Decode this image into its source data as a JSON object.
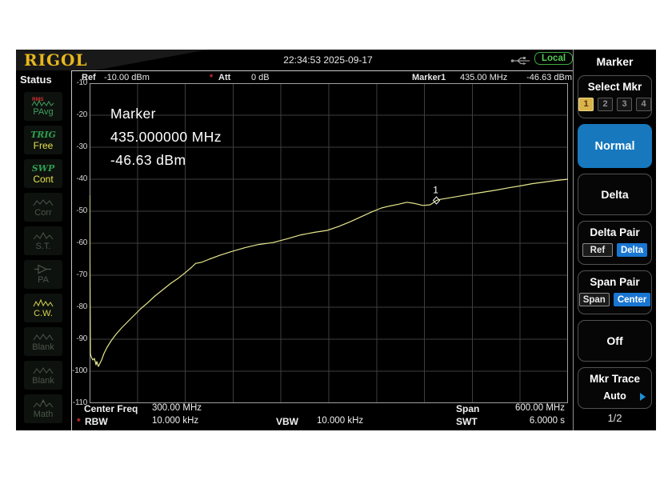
{
  "header": {
    "logo": "RIGOL",
    "timestamp": "22:34:53 2025-09-17",
    "usb_icon": "usb-icon",
    "local_badge": "Local"
  },
  "status_panel": {
    "title": "Status",
    "items": [
      {
        "top": "RMS",
        "label": "PAvg",
        "icon": "rms-wave-icon",
        "state": "green"
      },
      {
        "top": "TRIG",
        "label": "Free",
        "state": "active"
      },
      {
        "top": "SWP",
        "label": "Cont",
        "state": "active"
      },
      {
        "label": "Corr",
        "icon": "wave-icon",
        "state": "dim"
      },
      {
        "label": "S.T.",
        "icon": "wave-icon",
        "state": "dim"
      },
      {
        "label": "PA",
        "icon": "amplifier-icon",
        "state": "dim"
      },
      {
        "label": "C.W.",
        "icon": "wave-icon",
        "state": "yellow"
      },
      {
        "label": "Blank",
        "icon": "wave-icon",
        "state": "dim"
      },
      {
        "label": "Blank",
        "icon": "wave-icon",
        "state": "dim"
      },
      {
        "label": "Math",
        "icon": "math-wave-icon",
        "state": "dim"
      }
    ]
  },
  "display": {
    "ref_label": "Ref",
    "ref_value": "-10.00 dBm",
    "att_star": "*",
    "att_label": "Att",
    "att_value": "0 dB",
    "marker_readout_label": "Marker1",
    "marker_readout_freq": "435.00 MHz",
    "marker_readout_ampl": "-46.63 dBm",
    "overlay": {
      "title": "Marker",
      "freq": "435.000000 MHz",
      "ampl": "-46.63 dBm"
    },
    "footer": {
      "center_label": "Center Freq",
      "center_value": "300.00 MHz",
      "span_label": "Span",
      "span_value": "600.00 MHz",
      "rbw_star": "*",
      "rbw_label": "RBW",
      "rbw_value": "10.000 kHz",
      "vbw_label": "VBW",
      "vbw_value": "10.000 kHz",
      "swt_label": "SWT",
      "swt_value": "6.0000 s"
    }
  },
  "chart_data": {
    "type": "line",
    "title": "spectrum analyzer trace",
    "x_unit": "MHz",
    "y_unit": "dBm",
    "x_range": [
      0,
      600
    ],
    "y_range": [
      -110,
      -10
    ],
    "center_freq_mhz": 300,
    "span_mhz": 600,
    "y_ticks": [
      -10,
      -20,
      -30,
      -40,
      -50,
      -60,
      -70,
      -80,
      -90,
      -100,
      -110
    ],
    "grid_divisions": {
      "x": 10,
      "y": 10
    },
    "grid_on": true,
    "grid_color": "#3e3e3e",
    "border_color": "#a0a0a0",
    "trace_color": "#e6e68e",
    "marker": {
      "n": "1",
      "freq_mhz": 435,
      "ampl_dbm": -46.63,
      "color": "#ffffff"
    },
    "points": [
      [
        0,
        -45
      ],
      [
        1,
        -94.5
      ],
      [
        2,
        -95.5
      ],
      [
        4,
        -96.5
      ],
      [
        6,
        -96
      ],
      [
        8,
        -98
      ],
      [
        9,
        -97
      ],
      [
        11,
        -98.5
      ],
      [
        13,
        -97.5
      ],
      [
        15,
        -96.5
      ],
      [
        18,
        -94.5
      ],
      [
        22,
        -92.5
      ],
      [
        27,
        -90.5
      ],
      [
        33,
        -88.5
      ],
      [
        40,
        -86.5
      ],
      [
        48,
        -84.5
      ],
      [
        56,
        -82.5
      ],
      [
        64,
        -80.5
      ],
      [
        72,
        -78.8
      ],
      [
        82,
        -76.5
      ],
      [
        92,
        -74.5
      ],
      [
        102,
        -72.5
      ],
      [
        112,
        -70.8
      ],
      [
        120,
        -69.2
      ],
      [
        128,
        -67.5
      ],
      [
        133,
        -66.3
      ],
      [
        140,
        -66
      ],
      [
        150,
        -65
      ],
      [
        163,
        -63.8
      ],
      [
        178,
        -62.6
      ],
      [
        195,
        -61.4
      ],
      [
        212,
        -60.4
      ],
      [
        230,
        -59.8
      ],
      [
        248,
        -58.6
      ],
      [
        265,
        -57.4
      ],
      [
        282,
        -56.6
      ],
      [
        298,
        -56
      ],
      [
        312,
        -54.8
      ],
      [
        326,
        -53.4
      ],
      [
        340,
        -51.8
      ],
      [
        354,
        -50.2
      ],
      [
        366,
        -49
      ],
      [
        376,
        -48.4
      ],
      [
        388,
        -47.8
      ],
      [
        398,
        -47.2
      ],
      [
        408,
        -47.6
      ],
      [
        418,
        -48.2
      ],
      [
        427,
        -48
      ],
      [
        432,
        -47.2
      ],
      [
        435,
        -46.63
      ],
      [
        440,
        -46.3
      ],
      [
        452,
        -45.8
      ],
      [
        466,
        -45.2
      ],
      [
        480,
        -44.6
      ],
      [
        495,
        -44
      ],
      [
        510,
        -43.4
      ],
      [
        525,
        -42.7
      ],
      [
        540,
        -42.1
      ],
      [
        555,
        -41.4
      ],
      [
        570,
        -40.9
      ],
      [
        585,
        -40.4
      ],
      [
        600,
        -40
      ]
    ]
  },
  "menu": {
    "title": "Marker",
    "select_mkr": {
      "label": "Select Mkr",
      "options": [
        "1",
        "2",
        "3",
        "4"
      ],
      "selected": "1"
    },
    "normal": {
      "label": "Normal",
      "active": true
    },
    "delta": {
      "label": "Delta"
    },
    "delta_pair": {
      "label": "Delta Pair",
      "options": [
        "Ref",
        "Delta"
      ],
      "selected": "Delta"
    },
    "span_pair": {
      "label": "Span Pair",
      "options": [
        "Span",
        "Center"
      ],
      "selected": "Center"
    },
    "off": {
      "label": "Off"
    },
    "mkr_trace": {
      "label": "Mkr Trace",
      "value": "Auto",
      "arrow_icon": "submenu-arrow-icon"
    },
    "page_indicator": "1/2"
  },
  "colors": {
    "accent_blue": "#1778be",
    "chip_blue": "#1976d2",
    "selected_gold": "#d8b44a",
    "status_green": "#3fa05f",
    "status_yellow": "#e6e24e",
    "alert_red": "#d03030",
    "local_green": "#55cc55",
    "logo_gold": "#e8b71e"
  }
}
